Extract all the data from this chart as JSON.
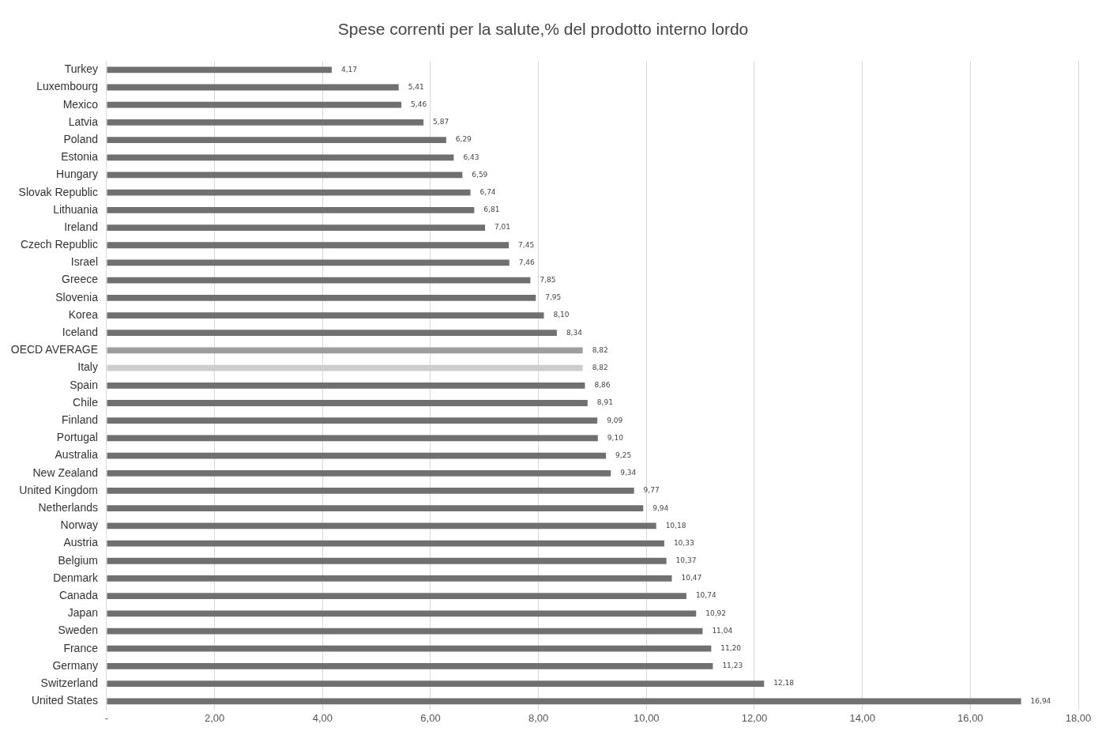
{
  "chart_data": {
    "type": "bar",
    "orientation": "horizontal",
    "title": "Spese correnti per la salute,% del prodotto interno lordo",
    "categories": [
      "Turkey",
      "Luxembourg",
      "Mexico",
      "Latvia",
      "Poland",
      "Estonia",
      "Hungary",
      "Slovak Republic",
      "Lithuania",
      "Ireland",
      "Czech Republic",
      "Israel",
      "Greece",
      "Slovenia",
      "Korea",
      "Iceland",
      "OECD AVERAGE",
      "Italy",
      "Spain",
      "Chile",
      "Finland",
      "Portugal",
      "Australia",
      "New Zealand",
      "United Kingdom",
      "Netherlands",
      "Norway",
      "Austria",
      "Belgium",
      "Denmark",
      "Canada",
      "Japan",
      "Sweden",
      "France",
      "Germany",
      "Switzerland",
      "United States"
    ],
    "values": [
      4.17,
      5.41,
      5.46,
      5.87,
      6.29,
      6.43,
      6.59,
      6.74,
      6.81,
      7.01,
      7.45,
      7.46,
      7.85,
      7.95,
      8.1,
      8.34,
      8.82,
      8.82,
      8.86,
      8.91,
      9.09,
      9.1,
      9.25,
      9.34,
      9.77,
      9.94,
      10.18,
      10.33,
      10.37,
      10.47,
      10.74,
      10.92,
      11.04,
      11.2,
      11.23,
      12.18,
      16.94
    ],
    "value_labels": [
      "4,17",
      "5,41",
      "5,46",
      "5,87",
      "6,29",
      "6,43",
      "6,59",
      "6,74",
      "6,81",
      "7,01",
      "7,45",
      "7,46",
      "7,85",
      "7,95",
      "8,10",
      "8,34",
      "8,82",
      "8,82",
      "8,86",
      "8,91",
      "9,09",
      "9,10",
      "9,25",
      "9,34",
      "9,77",
      "9,94",
      "10,18",
      "10,33",
      "10,37",
      "10,47",
      "10,74",
      "10,92",
      "11,04",
      "11,20",
      "11,23",
      "12,18",
      "16,94"
    ],
    "colors": [
      "#707070",
      "#707070",
      "#707070",
      "#707070",
      "#707070",
      "#707070",
      "#707070",
      "#707070",
      "#707070",
      "#707070",
      "#707070",
      "#707070",
      "#707070",
      "#707070",
      "#707070",
      "#707070",
      "#9e9e9e",
      "#cdcdcd",
      "#707070",
      "#707070",
      "#707070",
      "#707070",
      "#707070",
      "#707070",
      "#707070",
      "#707070",
      "#707070",
      "#707070",
      "#707070",
      "#707070",
      "#707070",
      "#707070",
      "#707070",
      "#707070",
      "#707070",
      "#707070",
      "#707070"
    ],
    "xlim": [
      0,
      18
    ],
    "xticks": [
      {
        "value": 0,
        "label": "-"
      },
      {
        "value": 2,
        "label": "2,00"
      },
      {
        "value": 4,
        "label": "4,00"
      },
      {
        "value": 6,
        "label": "6,00"
      },
      {
        "value": 8,
        "label": "8,00"
      },
      {
        "value": 10,
        "label": "10,00"
      },
      {
        "value": 12,
        "label": "12,00"
      },
      {
        "value": 14,
        "label": "14,00"
      },
      {
        "value": 16,
        "label": "16,00"
      },
      {
        "value": 18,
        "label": "18,00"
      }
    ],
    "grid": "x"
  }
}
